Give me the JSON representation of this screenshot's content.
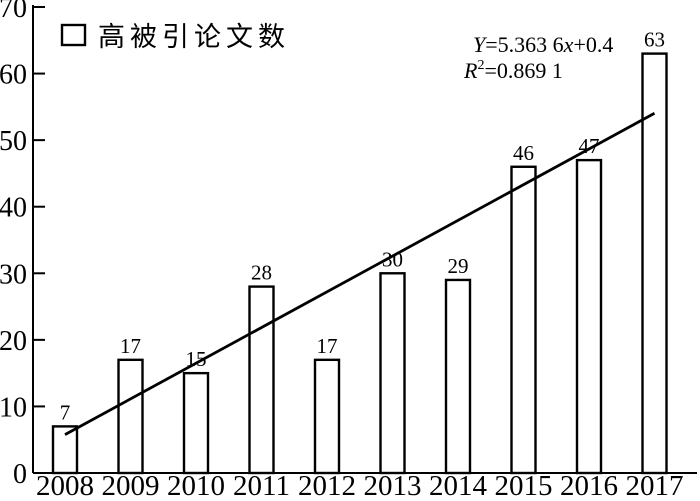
{
  "chart_data": {
    "type": "bar",
    "title": "",
    "xlabel": "",
    "ylabel": "",
    "categories": [
      "2008",
      "2009",
      "2010",
      "2011",
      "2012",
      "2013",
      "2014",
      "2015",
      "2016",
      "2017"
    ],
    "series": [
      {
        "name": "高被引论文数",
        "values": [
          7,
          17,
          15,
          28,
          17,
          30,
          29,
          46,
          47,
          63
        ]
      }
    ],
    "ylim": [
      0,
      70
    ],
    "yticks": [
      0,
      10,
      20,
      30,
      40,
      50,
      60,
      70
    ],
    "grid": false,
    "legend_position": "top-left",
    "bar_fill": "#ffffff",
    "bar_stroke": "#000000",
    "trendline": {
      "slope": 5.3636,
      "intercept": 0.4,
      "x_index_start": 1,
      "x_index_end": 10,
      "equation_text": "Y=5.363 6x+0.4",
      "r_squared_text": "R2=0.869 1"
    }
  },
  "legend": {
    "label": "高被引论文数"
  },
  "equation": {
    "var1": "Y",
    "body1": "=5.363 6",
    "x_var": "x",
    "tail1": "+0.4",
    "var2": "R",
    "sup2": "2",
    "body2": "=0.869 1"
  }
}
